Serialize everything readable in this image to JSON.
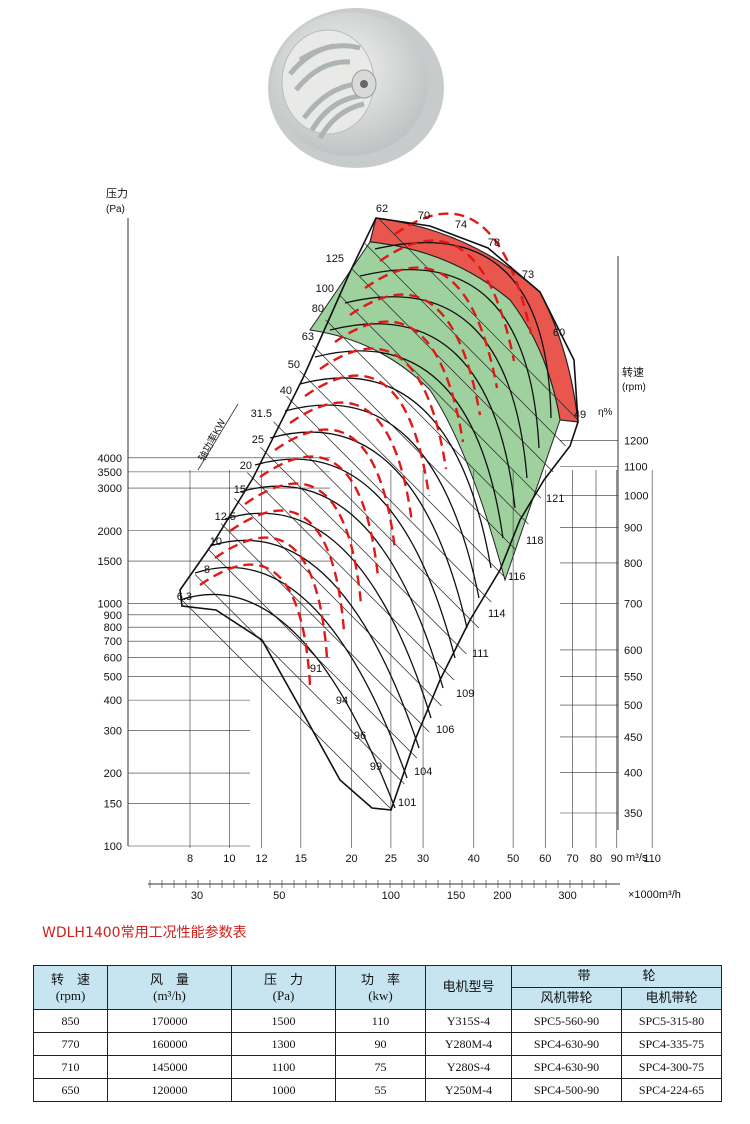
{
  "chart_data": {
    "type": "line",
    "title": "",
    "ylabel": "压力 (Pa)",
    "xlabel": "m³/s",
    "xlabel2": "×1000m³/h",
    "y_ticks": [
      100,
      150,
      200,
      300,
      400,
      500,
      600,
      700,
      800,
      900,
      1000,
      1500,
      2000,
      3000,
      3500,
      4000
    ],
    "x_ticks": [
      8,
      10,
      12,
      15,
      20,
      25,
      30,
      40,
      50,
      60,
      70,
      80,
      90,
      110
    ],
    "x2_ticks": [
      30,
      50,
      100,
      150,
      200,
      300
    ],
    "speed_axis": {
      "label": "转速 (rpm)",
      "ticks": [
        350,
        400,
        450,
        500,
        550,
        600,
        700,
        800,
        900,
        1000,
        1100,
        1200
      ]
    },
    "efficiency_label": "η%",
    "efficiency_values": [
      62,
      70,
      74,
      78,
      73,
      60,
      49
    ],
    "power_label": "轴功率KW",
    "power_values": [
      125,
      100,
      80,
      63,
      50,
      40,
      31.5,
      25,
      20,
      15,
      12.5,
      10,
      8,
      6.3
    ],
    "right_edge_values": [
      101,
      104,
      106,
      109,
      111,
      114,
      116,
      118,
      121
    ],
    "bottom_curve_values": [
      91,
      94,
      96,
      99
    ]
  },
  "table": {
    "title": "WDLH1400常用工况性能参数表",
    "headers": {
      "speed": "转　速",
      "speed_unit": "(rpm)",
      "flow": "风　量",
      "flow_unit": "(m³/h)",
      "pressure": "压　力",
      "pressure_unit": "(Pa)",
      "power": "功　率",
      "power_unit": "(kw)",
      "motor": "电机型号",
      "pulley": "带　　　　轮",
      "fan_pulley": "风机带轮",
      "motor_pulley": "电机带轮"
    },
    "rows": [
      [
        "850",
        "170000",
        "1500",
        "110",
        "Y315S-4",
        "SPC5-560-90",
        "SPC5-315-80"
      ],
      [
        "770",
        "160000",
        "1300",
        "90",
        "Y280M-4",
        "SPC4-630-90",
        "SPC4-335-75"
      ],
      [
        "710",
        "145000",
        "1100",
        "75",
        "Y280S-4",
        "SPC4-630-90",
        "SPC4-300-75"
      ],
      [
        "650",
        "120000",
        "1000",
        "55",
        "Y250M-4",
        "SPC4-500-90",
        "SPC4-224-65"
      ]
    ]
  }
}
